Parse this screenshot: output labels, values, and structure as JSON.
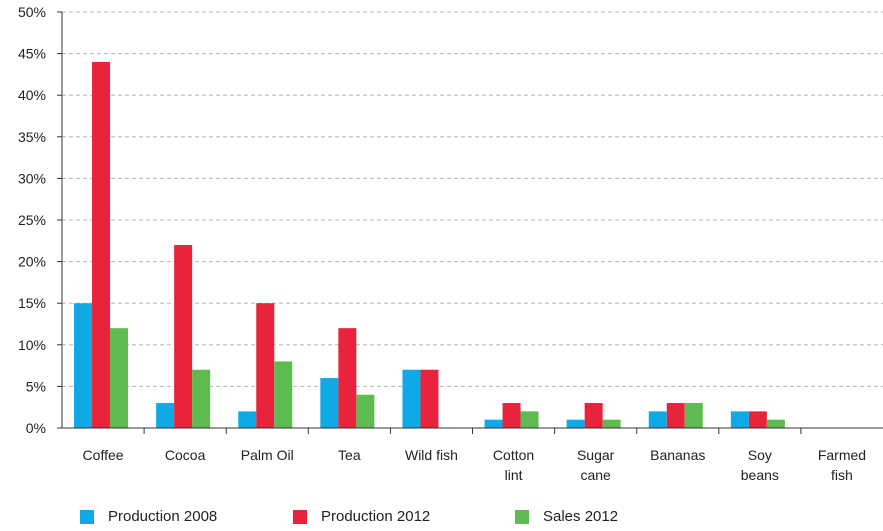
{
  "chart_data": {
    "type": "bar",
    "categories": [
      [
        "Coffee"
      ],
      [
        "Cocoa"
      ],
      [
        "Palm Oil"
      ],
      [
        "Tea"
      ],
      [
        "Wild fish"
      ],
      [
        "Cotton",
        "lint"
      ],
      [
        "Sugar",
        "cane"
      ],
      [
        "Bananas"
      ],
      [
        "Soy",
        "beans"
      ],
      [
        "Farmed",
        "fish"
      ]
    ],
    "series": [
      {
        "name": "Production 2008",
        "color": "#0FA9E6",
        "values": [
          15,
          3,
          2,
          6,
          7,
          1,
          1,
          2,
          2,
          0
        ]
      },
      {
        "name": "Production 2012",
        "color": "#E8233B",
        "values": [
          44,
          22,
          15,
          12,
          7,
          3,
          3,
          3,
          2,
          0
        ]
      },
      {
        "name": "Sales 2012",
        "color": "#5DBB4F",
        "values": [
          12,
          7,
          8,
          4,
          0,
          2,
          1,
          3,
          1,
          0
        ]
      }
    ],
    "yticks": [
      "0%",
      "5%",
      "10%",
      "15%",
      "20%",
      "25%",
      "30%",
      "35%",
      "40%",
      "45%",
      "50%"
    ],
    "ylim": [
      0,
      50
    ],
    "grid": true,
    "legend_position": "bottom-left"
  }
}
